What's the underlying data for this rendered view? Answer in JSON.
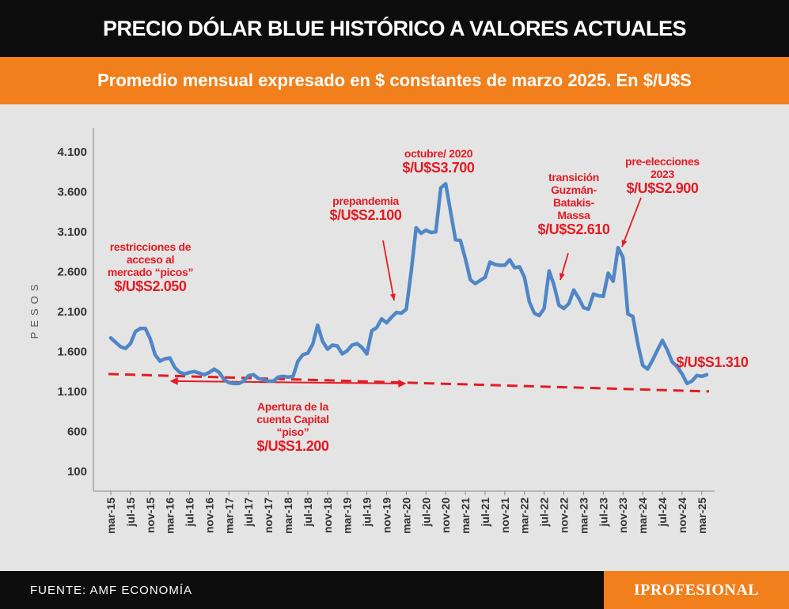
{
  "header": {
    "title": "PRECIO DÓLAR BLUE HISTÓRICO A VALORES ACTUALES",
    "subtitle": "Promedio mensual expresado en $ constantes de marzo 2025. En $/U$S"
  },
  "footer": {
    "source": "FUENTE: AMF ECONOMÍA",
    "brand": "IPROFESIONAL"
  },
  "colors": {
    "line": "#4f86c6",
    "accent": "#e31b23",
    "orange": "#f07f1c"
  },
  "chart_data": {
    "type": "line",
    "title": "PRECIO DÓLAR BLUE HISTÓRICO A VALORES ACTUALES",
    "subtitle": "Promedio mensual expresado en $ constantes de marzo 2025. En $/U$S",
    "ylabel": "PESOS",
    "ylim": [
      100,
      4100
    ],
    "yticks": [
      100,
      600,
      1100,
      1600,
      2100,
      2600,
      3100,
      3600,
      4100
    ],
    "ytick_labels": [
      "100",
      "600",
      "1.100",
      "1.600",
      "2.100",
      "2.600",
      "3.100",
      "3.600",
      "4.100"
    ],
    "categories": [
      "mar-15",
      "jul-15",
      "nov-15",
      "mar-16",
      "jul-16",
      "nov-16",
      "mar-17",
      "jul-17",
      "nov-17",
      "mar-18",
      "jul-18",
      "nov-18",
      "mar-19",
      "jul-19",
      "nov-19",
      "mar-20",
      "jul-20",
      "nov-20",
      "mar-21",
      "jul-21",
      "nov-21",
      "mar-22",
      "jul-22",
      "nov-22",
      "mar-23",
      "jul-23",
      "nov-23",
      "mar-24",
      "jul-24",
      "nov-24",
      "mar-25"
    ],
    "series": [
      {
        "values": [
          [
            0,
            1770
          ],
          [
            2,
            1660
          ],
          [
            3,
            1640
          ],
          [
            4,
            1700
          ],
          [
            5,
            1850
          ],
          [
            6,
            1890
          ],
          [
            7,
            1890
          ],
          [
            8,
            1760
          ],
          [
            9,
            1560
          ],
          [
            10,
            1480
          ],
          [
            11,
            1510
          ],
          [
            12,
            1520
          ],
          [
            13,
            1400
          ],
          [
            14,
            1340
          ],
          [
            15,
            1320
          ],
          [
            16,
            1340
          ],
          [
            17,
            1350
          ],
          [
            18,
            1330
          ],
          [
            19,
            1310
          ],
          [
            20,
            1340
          ],
          [
            21,
            1380
          ],
          [
            22,
            1340
          ],
          [
            23,
            1250
          ],
          [
            24,
            1210
          ],
          [
            25,
            1200
          ],
          [
            26,
            1200
          ],
          [
            27,
            1230
          ],
          [
            28,
            1300
          ],
          [
            29,
            1310
          ],
          [
            30,
            1260
          ],
          [
            31,
            1250
          ],
          [
            32,
            1230
          ],
          [
            33,
            1230
          ],
          [
            34,
            1280
          ],
          [
            35,
            1290
          ],
          [
            36,
            1280
          ],
          [
            37,
            1290
          ],
          [
            38,
            1480
          ],
          [
            39,
            1560
          ],
          [
            40,
            1580
          ],
          [
            41,
            1690
          ],
          [
            42,
            1930
          ],
          [
            43,
            1730
          ],
          [
            44,
            1630
          ],
          [
            45,
            1680
          ],
          [
            46,
            1670
          ],
          [
            47,
            1570
          ],
          [
            48,
            1610
          ],
          [
            49,
            1680
          ],
          [
            50,
            1700
          ],
          [
            51,
            1650
          ],
          [
            52,
            1570
          ],
          [
            53,
            1860
          ],
          [
            54,
            1900
          ],
          [
            55,
            2010
          ],
          [
            56,
            1960
          ],
          [
            57,
            2030
          ],
          [
            58,
            2090
          ],
          [
            59,
            2080
          ],
          [
            60,
            2130
          ],
          [
            61,
            2600
          ],
          [
            62,
            3150
          ],
          [
            63,
            3080
          ],
          [
            64,
            3120
          ],
          [
            65,
            3090
          ],
          [
            66,
            3100
          ],
          [
            67,
            3650
          ],
          [
            68,
            3700
          ],
          [
            69,
            3350
          ],
          [
            70,
            3000
          ],
          [
            71,
            2990
          ],
          [
            72,
            2760
          ],
          [
            73,
            2500
          ],
          [
            74,
            2450
          ],
          [
            75,
            2490
          ],
          [
            76,
            2530
          ],
          [
            77,
            2720
          ],
          [
            78,
            2690
          ],
          [
            79,
            2680
          ],
          [
            80,
            2680
          ],
          [
            81,
            2750
          ],
          [
            82,
            2650
          ],
          [
            83,
            2660
          ],
          [
            84,
            2530
          ],
          [
            85,
            2220
          ],
          [
            86,
            2080
          ],
          [
            87,
            2050
          ],
          [
            88,
            2140
          ],
          [
            89,
            2610
          ],
          [
            90,
            2430
          ],
          [
            91,
            2180
          ],
          [
            92,
            2140
          ],
          [
            93,
            2200
          ],
          [
            94,
            2370
          ],
          [
            95,
            2270
          ],
          [
            96,
            2150
          ],
          [
            97,
            2130
          ],
          [
            98,
            2320
          ],
          [
            99,
            2300
          ],
          [
            100,
            2290
          ],
          [
            101,
            2580
          ],
          [
            102,
            2480
          ],
          [
            103,
            2900
          ],
          [
            104,
            2780
          ],
          [
            105,
            2070
          ],
          [
            106,
            2040
          ],
          [
            107,
            1700
          ],
          [
            108,
            1430
          ],
          [
            109,
            1380
          ],
          [
            110,
            1490
          ],
          [
            111,
            1620
          ],
          [
            112,
            1740
          ],
          [
            113,
            1620
          ],
          [
            114,
            1470
          ],
          [
            115,
            1410
          ],
          [
            116,
            1320
          ],
          [
            117,
            1200
          ],
          [
            118,
            1230
          ],
          [
            119,
            1300
          ],
          [
            120,
            1290
          ],
          [
            121,
            1310
          ]
        ]
      }
    ],
    "floor_line": {
      "value": 1200,
      "label": "$/U$S1.200"
    },
    "annotations": [
      {
        "lines": [
          "restricciones de",
          "acceso al",
          "mercado “picos”"
        ],
        "value_label": "$/U$S2.050"
      },
      {
        "lines": [
          "Apertura de la",
          "cuenta Capital",
          "“piso”"
        ],
        "value_label": "$/U$S1.200"
      },
      {
        "lines": [
          "prepandemia"
        ],
        "value_label": "$/U$S2.100"
      },
      {
        "lines": [
          "octubre/ 2020"
        ],
        "value_label": "$/U$S3.700"
      },
      {
        "lines": [
          "transición",
          "Guzmán-",
          "Batakis-",
          "Massa"
        ],
        "value_label": "$/U$S2.610"
      },
      {
        "lines": [
          "pre-elecciones",
          "2023"
        ],
        "value_label": "$/U$S2.900"
      },
      {
        "lines": [],
        "value_label": "$/U$S1.310"
      }
    ],
    "grid": false,
    "legend": "none"
  }
}
